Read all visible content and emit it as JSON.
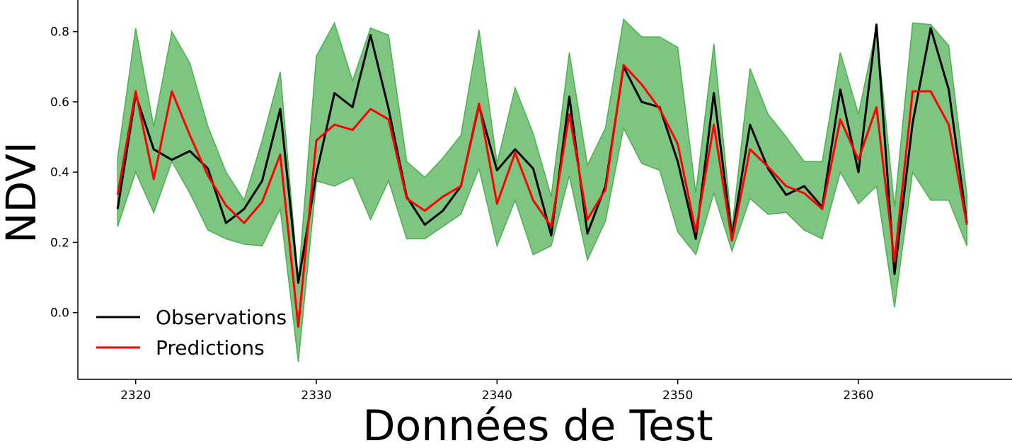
{
  "chart_data": {
    "type": "line",
    "xlabel": "Données de Test",
    "ylabel": "NDVI",
    "xlim": [
      2316.8,
      2368.5
    ],
    "ylim": [
      -0.19,
      0.89
    ],
    "xticks": [
      2320,
      2330,
      2340,
      2350,
      2360
    ],
    "yticks": [
      0.0,
      0.2,
      0.4,
      0.6,
      0.8
    ],
    "x": [
      2319,
      2320,
      2321,
      2322,
      2323,
      2324,
      2325,
      2326,
      2327,
      2328,
      2329,
      2330,
      2331,
      2332,
      2333,
      2334,
      2335,
      2336,
      2337,
      2338,
      2339,
      2340,
      2341,
      2342,
      2343,
      2344,
      2345,
      2346,
      2347,
      2348,
      2349,
      2350,
      2351,
      2352,
      2353,
      2354,
      2355,
      2356,
      2357,
      2358,
      2359,
      2360,
      2361,
      2362,
      2363,
      2364,
      2365,
      2366
    ],
    "band": {
      "color": "#4caf50",
      "lower": [
        0.245,
        0.4,
        0.285,
        0.43,
        0.34,
        0.235,
        0.21,
        0.195,
        0.19,
        0.295,
        -0.14,
        0.375,
        0.36,
        0.385,
        0.265,
        0.375,
        0.21,
        0.21,
        0.245,
        0.28,
        0.41,
        0.19,
        0.32,
        0.165,
        0.19,
        0.39,
        0.15,
        0.26,
        0.525,
        0.425,
        0.405,
        0.23,
        0.165,
        0.34,
        0.175,
        0.325,
        0.28,
        0.285,
        0.235,
        0.21,
        0.4,
        0.31,
        0.36,
        0.015,
        0.4,
        0.32,
        0.32,
        0.19
      ],
      "upper": [
        0.44,
        0.81,
        0.53,
        0.8,
        0.71,
        0.53,
        0.4,
        0.32,
        0.49,
        0.685,
        0.09,
        0.73,
        0.825,
        0.66,
        0.81,
        0.79,
        0.43,
        0.385,
        0.44,
        0.505,
        0.805,
        0.425,
        0.64,
        0.51,
        0.33,
        0.74,
        0.42,
        0.525,
        0.835,
        0.785,
        0.785,
        0.755,
        0.34,
        0.765,
        0.24,
        0.695,
        0.565,
        0.5,
        0.43,
        0.43,
        0.74,
        0.565,
        0.81,
        0.3,
        0.825,
        0.82,
        0.76,
        0.335
      ]
    },
    "series": [
      {
        "name": "Observations",
        "color": "#000000",
        "values": [
          0.295,
          0.62,
          0.465,
          0.435,
          0.46,
          0.41,
          0.255,
          0.295,
          0.375,
          0.58,
          0.085,
          0.395,
          0.625,
          0.585,
          0.79,
          0.58,
          0.33,
          0.25,
          0.29,
          0.36,
          0.59,
          0.405,
          0.465,
          0.41,
          0.22,
          0.615,
          0.225,
          0.36,
          0.7,
          0.6,
          0.585,
          0.43,
          0.21,
          0.625,
          0.215,
          0.535,
          0.41,
          0.335,
          0.36,
          0.3,
          0.635,
          0.4,
          0.82,
          0.11,
          0.54,
          0.81,
          0.635,
          0.255
        ]
      },
      {
        "name": "Predictions",
        "color": "#ff0000",
        "values": [
          0.335,
          0.63,
          0.38,
          0.63,
          0.505,
          0.39,
          0.305,
          0.255,
          0.315,
          0.45,
          -0.04,
          0.49,
          0.535,
          0.52,
          0.58,
          0.55,
          0.325,
          0.29,
          0.33,
          0.36,
          0.595,
          0.31,
          0.455,
          0.32,
          0.245,
          0.565,
          0.265,
          0.35,
          0.705,
          0.65,
          0.58,
          0.48,
          0.23,
          0.535,
          0.205,
          0.465,
          0.415,
          0.36,
          0.34,
          0.295,
          0.55,
          0.435,
          0.585,
          0.145,
          0.63,
          0.63,
          0.535,
          0.25
        ]
      }
    ],
    "legend_position": "lower-left",
    "grid": false
  }
}
